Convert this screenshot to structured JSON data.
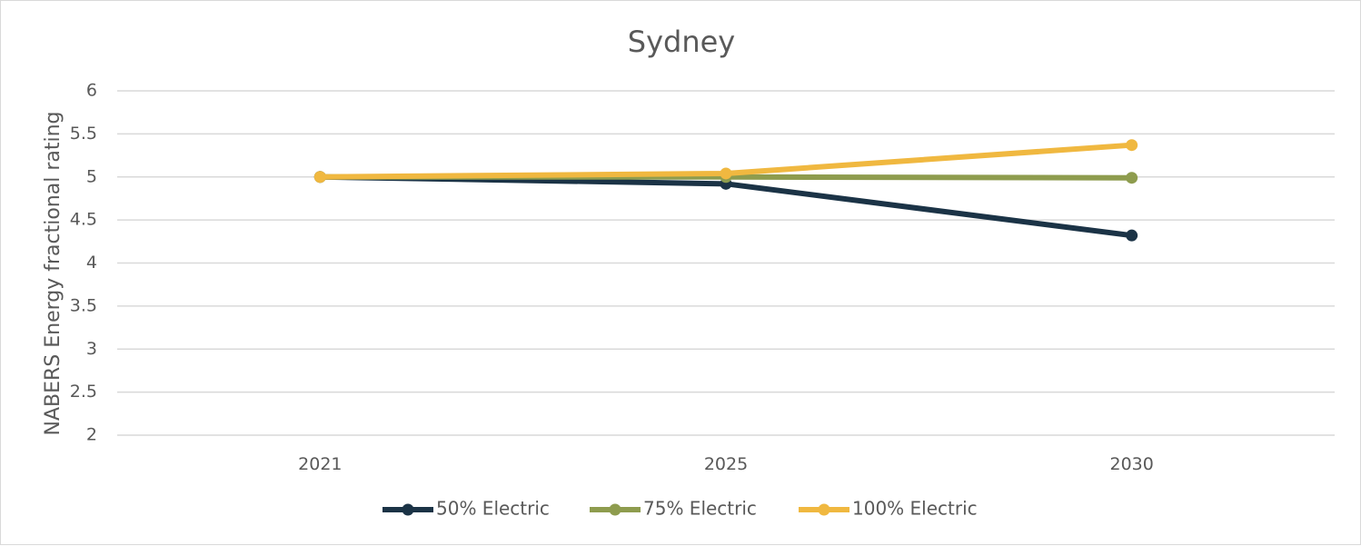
{
  "chart_data": {
    "type": "line",
    "title": "Sydney",
    "xlabel": "",
    "ylabel": "NABERS Energy fractional rating",
    "categories": [
      "2021",
      "2025",
      "2030"
    ],
    "ylim": [
      2,
      6
    ],
    "yticks": [
      2,
      2.5,
      3,
      3.5,
      4,
      4.5,
      5,
      5.5,
      6
    ],
    "ytick_labels": [
      "2",
      "2.5",
      "3",
      "3.5",
      "4",
      "4.5",
      "5",
      "5.5",
      "6"
    ],
    "grid": true,
    "legend_position": "bottom",
    "series": [
      {
        "name": "50% Electric",
        "color": "#1b3346",
        "values": [
          5.0,
          4.92,
          4.32
        ]
      },
      {
        "name": "75% Electric",
        "color": "#8e9c4e",
        "values": [
          5.0,
          5.0,
          4.99
        ]
      },
      {
        "name": "100% Electric",
        "color": "#f0b840",
        "values": [
          5.0,
          5.04,
          5.37
        ]
      }
    ]
  }
}
